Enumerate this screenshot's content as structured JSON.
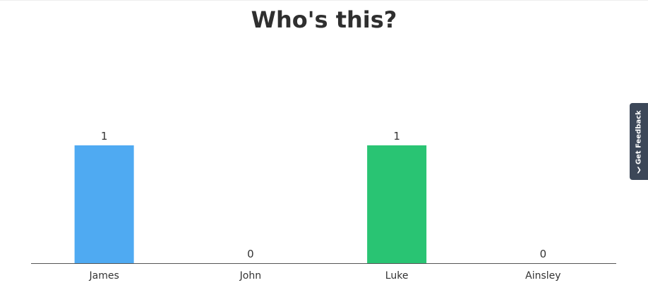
{
  "chart_data": {
    "type": "bar",
    "title": "Who's this?",
    "categories": [
      "James",
      "John",
      "Luke",
      "Ainsley"
    ],
    "values": [
      1,
      0,
      1,
      0
    ],
    "colors": [
      "#4faaf2",
      "#4faaf2",
      "#29c473",
      "#29c473"
    ],
    "ylim": [
      0,
      1
    ],
    "grid": false,
    "xlabel": "",
    "ylabel": ""
  },
  "feedback": {
    "label": "Get Feedback",
    "icon": "chevron-up-icon"
  }
}
